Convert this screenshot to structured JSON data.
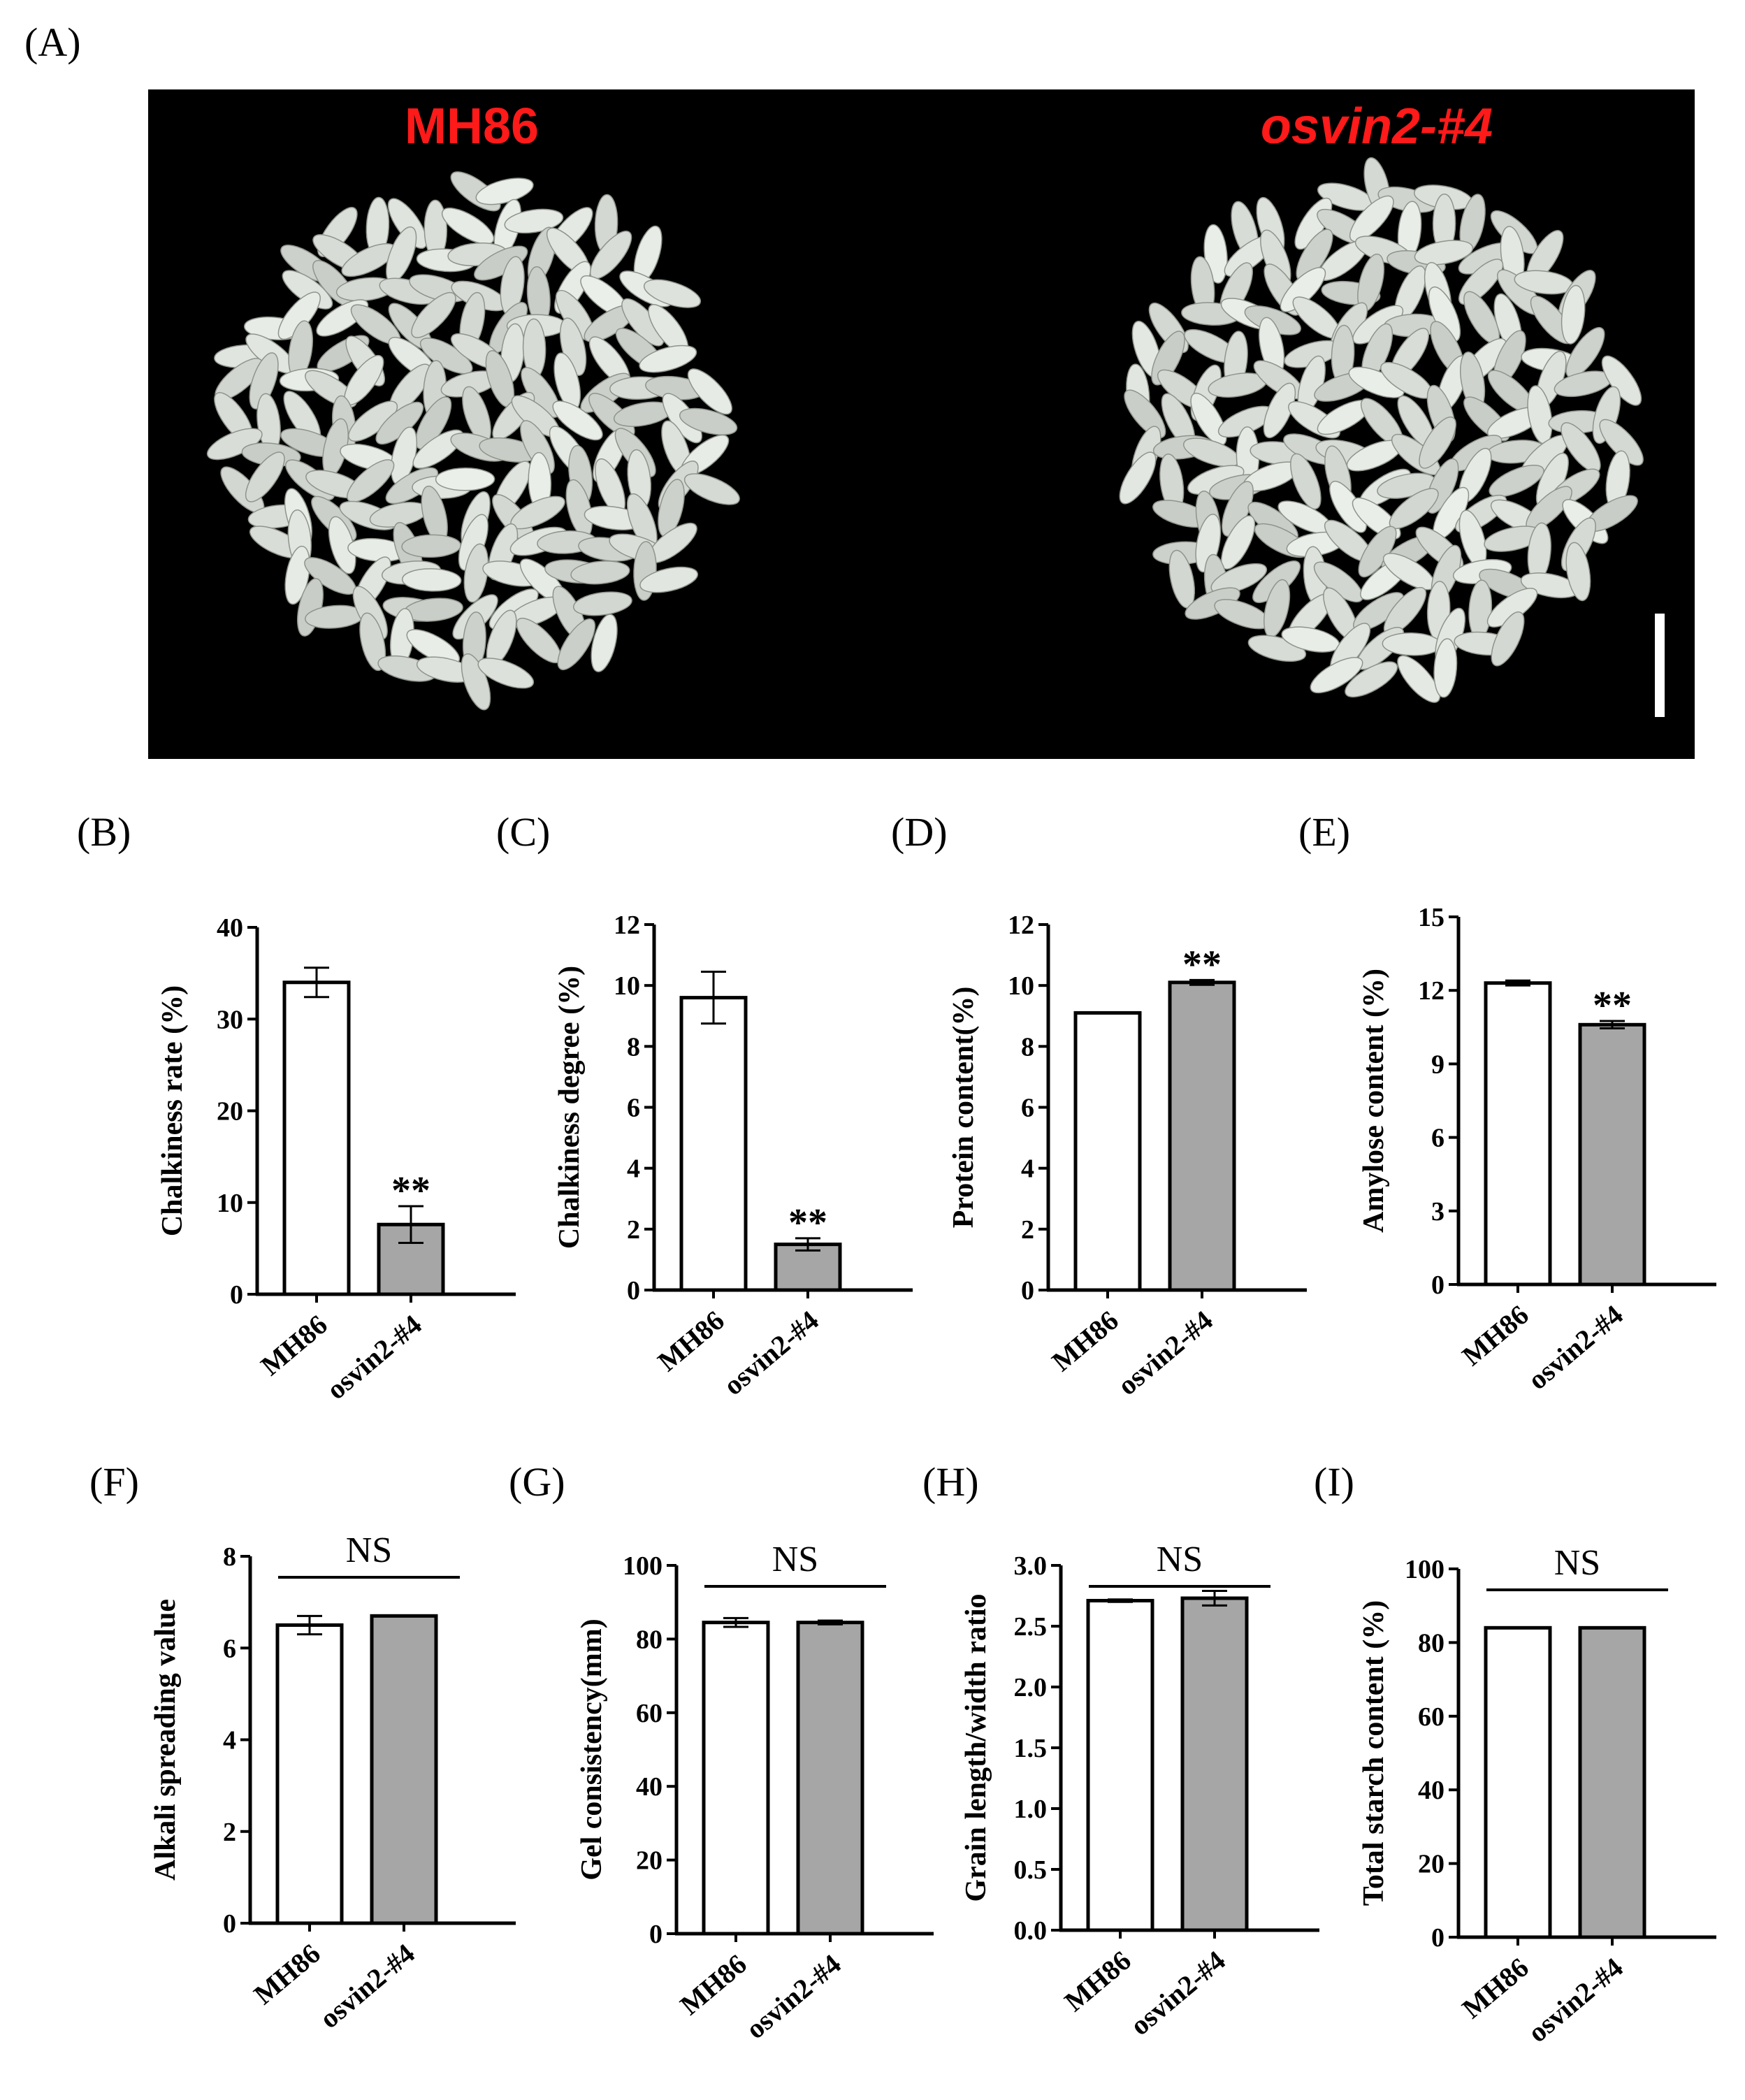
{
  "figure": {
    "panel_a": {
      "letter": "(A)",
      "left_label": "MH86",
      "right_label": "osvin2-#4",
      "colors": {
        "background": "#000000",
        "label": "#ff1a1a",
        "grain": "#d9ddd6",
        "scale_bar": "#ffffff"
      }
    }
  },
  "colors": {
    "wild_type_bar": "#ffffff",
    "mutant_bar": "#a6a6a6",
    "axis": "#000000"
  },
  "chart_data": [
    {
      "panel": "(B)",
      "type": "bar",
      "categories": [
        "MH86",
        "osvin2-#4"
      ],
      "values": [
        34.0,
        7.6
      ],
      "errors": [
        1.6,
        2.0
      ],
      "ylabel": "Chalkiness rate (%)",
      "ylim": [
        0,
        40
      ],
      "yticks": [
        "0",
        "10",
        "20",
        "30",
        "40"
      ],
      "annotation": "**",
      "annotation_on": "osvin2-#4"
    },
    {
      "panel": "(C)",
      "type": "bar",
      "categories": [
        "MH86",
        "osvin2-#4"
      ],
      "values": [
        9.6,
        1.5
      ],
      "errors": [
        0.85,
        0.2
      ],
      "ylabel": "Chalkiness degree (%)",
      "ylim": [
        0,
        12
      ],
      "yticks": [
        "0",
        "2",
        "4",
        "6",
        "8",
        "10",
        "12"
      ],
      "annotation": "**",
      "annotation_on": "osvin2-#4"
    },
    {
      "panel": "(D)",
      "type": "bar",
      "categories": [
        "MH86",
        "osvin2-#4"
      ],
      "values": [
        9.1,
        10.1
      ],
      "errors": [
        0.02,
        0.08
      ],
      "ylabel": "Protein content(%)",
      "ylim": [
        0,
        12
      ],
      "yticks": [
        "0",
        "2",
        "4",
        "6",
        "8",
        "10",
        "12"
      ],
      "annotation": "**",
      "annotation_on": "osvin2-#4"
    },
    {
      "panel": "(E)",
      "type": "bar",
      "categories": [
        "MH86",
        "osvin2-#4"
      ],
      "values": [
        12.3,
        10.6
      ],
      "errors": [
        0.1,
        0.15
      ],
      "ylabel": "Amylose content (%)",
      "ylim": [
        0,
        15
      ],
      "yticks": [
        "0",
        "3",
        "6",
        "9",
        "12",
        "15"
      ],
      "annotation": "**",
      "annotation_on": "osvin2-#4"
    },
    {
      "panel": "(F)",
      "type": "bar",
      "categories": [
        "MH86",
        "osvin2-#4"
      ],
      "values": [
        6.5,
        6.7
      ],
      "errors": [
        0.2,
        0.02
      ],
      "ylabel": "Alkali spreading value",
      "ylim": [
        0,
        8
      ],
      "yticks": [
        "0",
        "2",
        "4",
        "6",
        "8"
      ],
      "annotation": "NS",
      "annotation_on": "both"
    },
    {
      "panel": "(G)",
      "type": "bar",
      "categories": [
        "MH86",
        "osvin2-#4"
      ],
      "values": [
        84.5,
        84.5
      ],
      "errors": [
        1.2,
        0.5
      ],
      "ylabel": "Gel consistency(mm)",
      "ylim": [
        0,
        100
      ],
      "yticks": [
        "0",
        "20",
        "40",
        "60",
        "80",
        "100"
      ],
      "annotation": "NS",
      "annotation_on": "both"
    },
    {
      "panel": "(H)",
      "type": "bar",
      "categories": [
        "MH86",
        "osvin2-#4"
      ],
      "values": [
        2.71,
        2.73
      ],
      "errors": [
        0.01,
        0.06
      ],
      "ylabel": "Grain length/width ratio",
      "ylim": [
        0,
        3.0
      ],
      "yticks": [
        "0.0",
        "0.5",
        "1.0",
        "1.5",
        "2.0",
        "2.5",
        "3.0"
      ],
      "annotation": "NS",
      "annotation_on": "both"
    },
    {
      "panel": "(I)",
      "type": "bar",
      "categories": [
        "MH86",
        "osvin2-#4"
      ],
      "values": [
        84.0,
        84.0
      ],
      "errors": [
        0.2,
        0.2
      ],
      "ylabel": "Total starch content (%)",
      "ylim": [
        0,
        100
      ],
      "yticks": [
        "0",
        "20",
        "40",
        "60",
        "80",
        "100"
      ],
      "annotation": "NS",
      "annotation_on": "both"
    }
  ]
}
